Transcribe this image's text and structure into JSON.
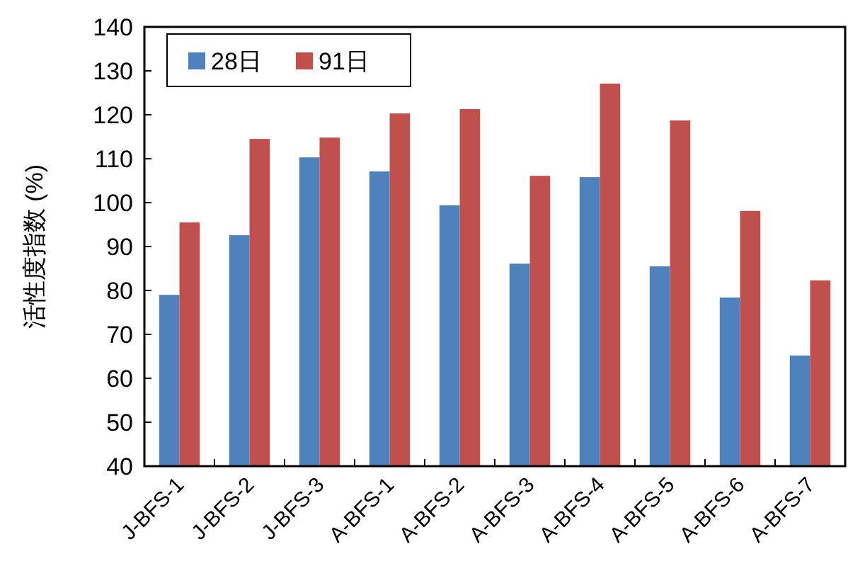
{
  "chart_data": {
    "type": "bar",
    "ylabel": "活性度指数 (%)",
    "categories": [
      "J-BFS-1",
      "J-BFS-2",
      "J-BFS-3",
      "A-BFS-1",
      "A-BFS-2",
      "A-BFS-3",
      "A-BFS-4",
      "A-BFS-5",
      "A-BFS-6",
      "A-BFS-7"
    ],
    "series": [
      {
        "name": "28日",
        "color": "#4f81bd",
        "values": [
          79.0,
          92.6,
          110.3,
          107.1,
          99.4,
          86.1,
          105.8,
          85.5,
          78.4,
          65.2
        ]
      },
      {
        "name": "91日",
        "color": "#c0504d",
        "values": [
          95.5,
          114.5,
          114.8,
          120.3,
          121.3,
          106.1,
          127.1,
          118.7,
          98.1,
          82.3
        ]
      }
    ],
    "ylim": [
      40,
      140
    ],
    "yticks": [
      40,
      50,
      60,
      70,
      80,
      90,
      100,
      110,
      120,
      130,
      140
    ],
    "grid": false,
    "legend": "top left"
  }
}
